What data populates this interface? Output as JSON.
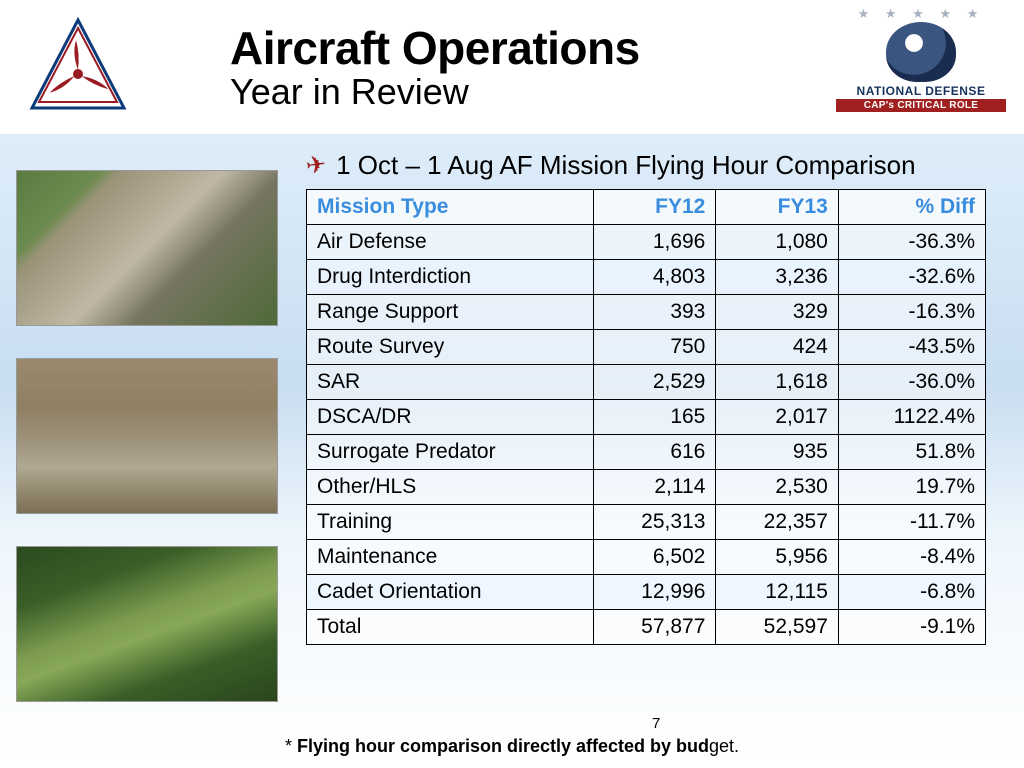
{
  "header": {
    "title": "Aircraft Operations",
    "subtitle": "Year in Review",
    "nd_text": "NATIONAL DEFENSE",
    "nd_bar": "CAP's CRITICAL ROLE"
  },
  "bullet": "1 Oct – 1 Aug AF Mission Flying Hour Comparison",
  "table": {
    "columns": [
      "Mission Type",
      "FY12",
      "FY13",
      "% Diff"
    ],
    "col_align": [
      "left",
      "right",
      "right",
      "right"
    ],
    "header_color": "#3a8dde",
    "border_color": "#000000",
    "alt_row_bg": "#eaf5ff",
    "rows": [
      {
        "cells": [
          "Air Defense",
          "1,696",
          "1,080",
          "-36.3%"
        ],
        "alt": false
      },
      {
        "cells": [
          "Drug Interdiction",
          "4,803",
          "3,236",
          "-32.6%"
        ],
        "alt": true
      },
      {
        "cells": [
          "Range Support",
          "393",
          "329",
          "-16.3%"
        ],
        "alt": false
      },
      {
        "cells": [
          "Route Survey",
          "750",
          "424",
          "-43.5%"
        ],
        "alt": false
      },
      {
        "cells": [
          "SAR",
          "2,529",
          "1,618",
          "-36.0%"
        ],
        "alt": false
      },
      {
        "cells": [
          "DSCA/DR",
          "165",
          "2,017",
          "1122.4%"
        ],
        "alt": false
      },
      {
        "cells": [
          "Surrogate Predator",
          "616",
          "935",
          "51.8%"
        ],
        "alt": false
      },
      {
        "cells": [
          "Other/HLS",
          "2,114",
          "2,530",
          "19.7%"
        ],
        "alt": false
      },
      {
        "cells": [
          "Training",
          "25,313",
          "22,357",
          "-11.7%"
        ],
        "alt": false
      },
      {
        "cells": [
          "Maintenance",
          "6,502",
          "5,956",
          "-8.4%"
        ],
        "alt": false
      },
      {
        "cells": [
          "Cadet Orientation",
          "12,996",
          "12,115",
          "-6.8%"
        ],
        "alt": true
      },
      {
        "cells": [
          "Total",
          "57,877",
          "52,597",
          "-9.1%"
        ],
        "alt": false
      }
    ]
  },
  "footnote_prefix": "* ",
  "footnote_bold": "Flying hour comparison directly affected by bud",
  "footnote_suffix": "get.",
  "page_number": "7",
  "colors": {
    "accent_red": "#a02020",
    "header_blue": "#3a8dde",
    "cap_blue": "#0d3a7a",
    "cap_red": "#9a1b24"
  }
}
